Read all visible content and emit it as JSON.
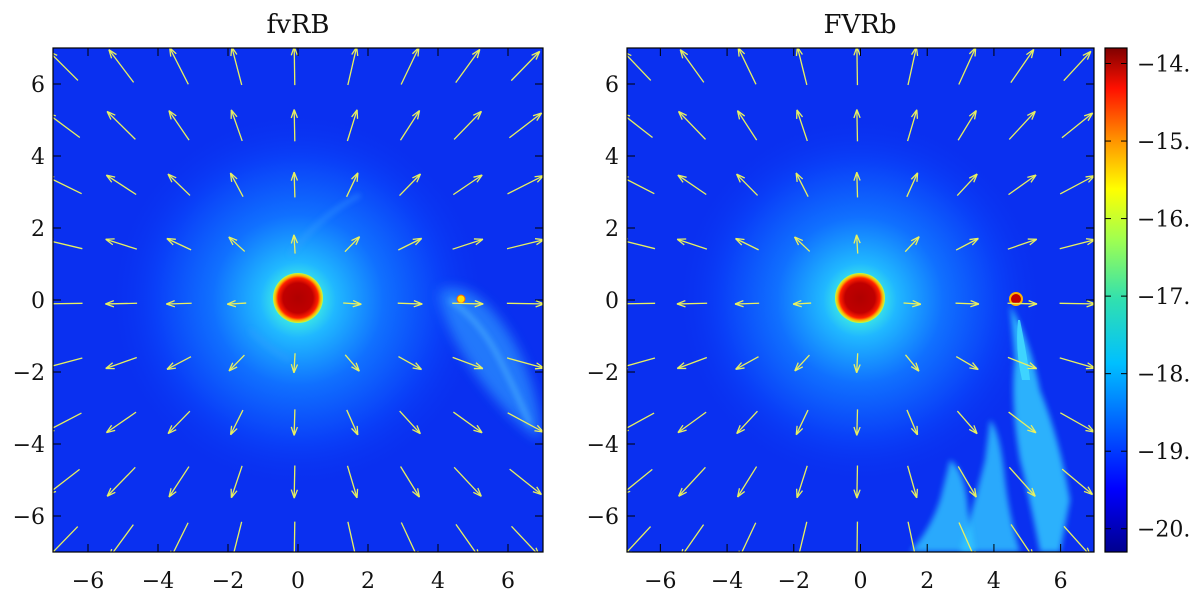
{
  "chart_data": [
    {
      "type": "heatmap",
      "title": "fvRB",
      "xlabel": "",
      "ylabel": "",
      "xlim": [
        -7,
        7
      ],
      "ylim": [
        -7,
        7
      ],
      "xticks": [
        -6,
        -4,
        -2,
        0,
        2,
        4,
        6
      ],
      "yticks": [
        -6,
        -4,
        -2,
        0,
        2,
        4,
        6
      ],
      "xtick_labels": [
        "−6",
        "−4",
        "−2",
        "0",
        "2",
        "4",
        "6"
      ],
      "ytick_labels": [
        "−6",
        "−4",
        "−2",
        "0",
        "2",
        "4",
        "6"
      ],
      "grid": false,
      "central_body": {
        "x": 0,
        "y": 0,
        "radius": 0.7,
        "value": -14
      },
      "companion": {
        "x": 4.75,
        "y": 0.1,
        "value": -16.5
      },
      "vector_color": "#e8f060"
    },
    {
      "type": "heatmap",
      "title": "FVRb",
      "xlabel": "",
      "ylabel": "",
      "xlim": [
        -7,
        7
      ],
      "ylim": [
        -7,
        7
      ],
      "xticks": [
        -6,
        -4,
        -2,
        0,
        2,
        4,
        6
      ],
      "yticks": [
        -6,
        -4,
        -2,
        0,
        2,
        4,
        6
      ],
      "xtick_labels": [
        "−6",
        "−4",
        "−2",
        "0",
        "2",
        "4",
        "6"
      ],
      "ytick_labels": [
        "−6",
        "−4",
        "−2",
        "0",
        "2",
        "4",
        "6"
      ],
      "grid": false,
      "central_body": {
        "x": 0,
        "y": 0,
        "radius": 0.7,
        "value": -14
      },
      "companion": {
        "x": 4.8,
        "y": 0.1,
        "value": -14
      },
      "vector_color": "#e8f060"
    }
  ],
  "colorbar": {
    "range": [
      -20.3,
      -13.8
    ],
    "ticks": [
      -14,
      -15,
      -16,
      -17,
      -18,
      -19,
      -20
    ],
    "tick_labels": [
      "−14.",
      "−15.",
      "−16.",
      "−17.",
      "−18.",
      "−19.",
      "−20."
    ],
    "colormap": [
      "#00008f",
      "#0000ff",
      "#0080ff",
      "#00ffff",
      "#80ff80",
      "#ffff00",
      "#ff8000",
      "#ff0000",
      "#800000"
    ]
  }
}
